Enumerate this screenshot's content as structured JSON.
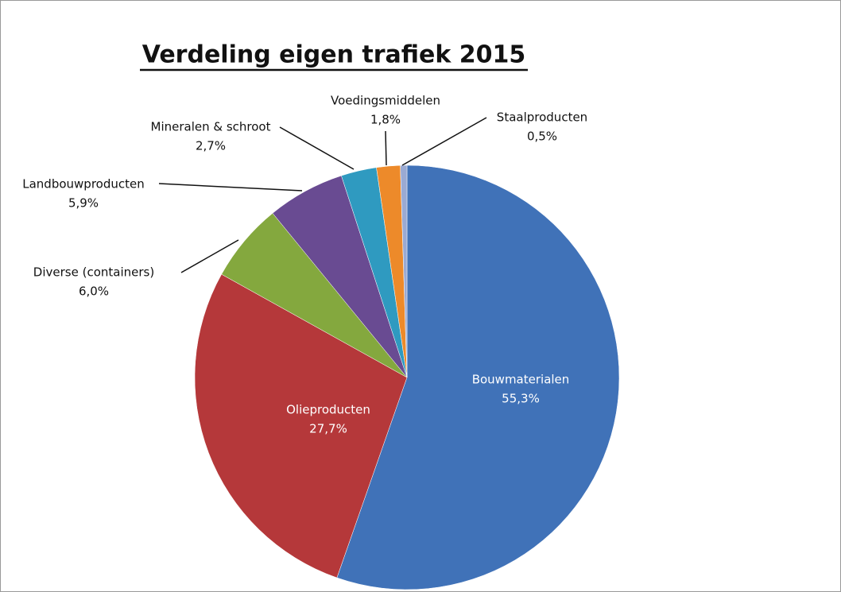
{
  "chart_data": {
    "type": "pie",
    "title": "Verdeling eigen trafiek 2015",
    "categories": [
      "Bouwmaterialen",
      "Olieproducten",
      "Diverse (containers)",
      "Landbouwproducten",
      "Mineralen & schroot",
      "Voedingsmiddelen",
      "Staalproducten"
    ],
    "values": [
      55.3,
      27.7,
      6.0,
      5.9,
      2.7,
      1.8,
      0.5
    ],
    "value_labels": [
      "55,3%",
      "27,7%",
      "6,0%",
      "5,9%",
      "2,7%",
      "1,8%",
      "0,5%"
    ],
    "colors": [
      "#4072b8",
      "#b5383a",
      "#84a83e",
      "#694b92",
      "#2f9ac0",
      "#ed8a2a",
      "#9aaad3"
    ]
  }
}
